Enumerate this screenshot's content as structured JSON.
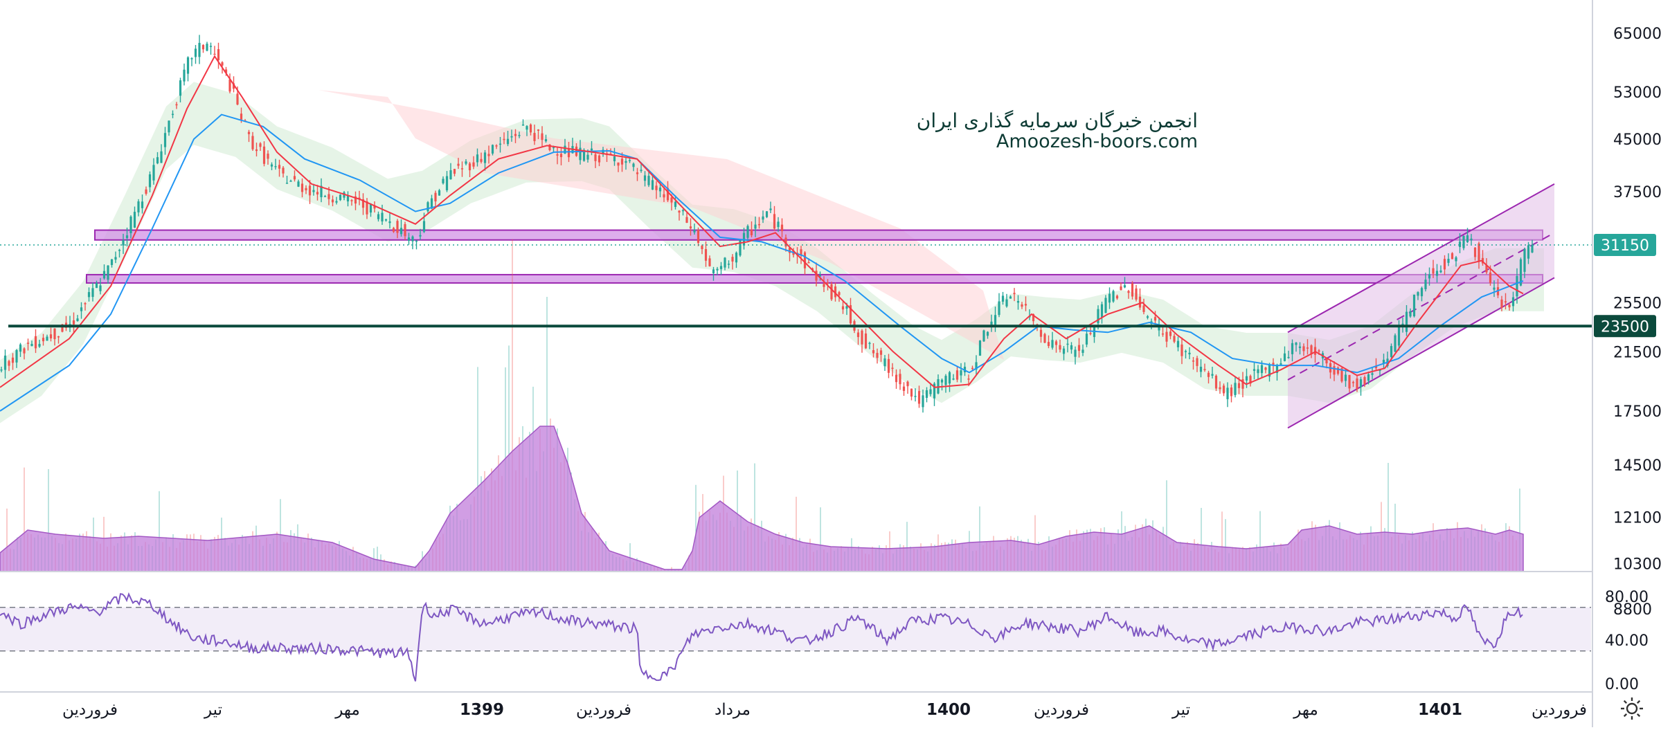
{
  "watermark": {
    "line1": "انجمن خبرگان سرمایه گذاری ایران",
    "line2": "Amoozesh-boors.com"
  },
  "settings_icon": "gear-icon",
  "colors": {
    "price_line": "#26a69a",
    "support_line": "#0b4a3c",
    "zone_fill": "#d291e6",
    "zone_stroke": "#9c27b0",
    "channel": "#9c27b0",
    "ma_fast": "#f23645",
    "ma_slow": "#2196f3",
    "cloud_green": "#c8e6c9",
    "cloud_red": "#ffcdd2",
    "volume_area": "#c27ddb",
    "rsi_line": "#7e57c2",
    "rsi_band": "#ede7f6"
  },
  "chart_data": [
    {
      "type": "candlestick",
      "panel": "price",
      "y_scale": "log",
      "y_ticks": [
        65000,
        53000,
        45000,
        37500,
        31150,
        25500,
        23500,
        21500,
        17500,
        14500,
        12100,
        10300,
        8800
      ],
      "price_ticks": [
        65000,
        53000,
        45000,
        37500,
        25500,
        21500,
        17500,
        14500,
        12100,
        10300,
        8800
      ],
      "last_price": 31150,
      "support_level": 23500,
      "resistance_zones": [
        [
          31700,
          32800
        ],
        [
          27300,
          28100
        ]
      ],
      "x_labels": [
        "فروردین",
        "تیر",
        "مهر",
        "1399",
        "فروردین",
        "مرداد",
        "1400",
        "فروردین",
        "تیر",
        "مهر",
        "1401",
        "فروردین"
      ],
      "x_labels_bold": [
        false,
        false,
        false,
        true,
        false,
        false,
        true,
        false,
        false,
        false,
        true,
        false
      ],
      "close_path": [
        [
          0,
          20500
        ],
        [
          40,
          22000
        ],
        [
          100,
          23500
        ],
        [
          160,
          29000
        ],
        [
          220,
          40000
        ],
        [
          250,
          50000
        ],
        [
          275,
          60000
        ],
        [
          300,
          63000
        ],
        [
          330,
          55000
        ],
        [
          360,
          45000
        ],
        [
          400,
          40000
        ],
        [
          440,
          38000
        ],
        [
          480,
          37000
        ],
        [
          520,
          36000
        ],
        [
          560,
          34000
        ],
        [
          600,
          31500
        ],
        [
          620,
          36000
        ],
        [
          650,
          40000
        ],
        [
          690,
          42000
        ],
        [
          720,
          44000
        ],
        [
          760,
          47000
        ],
        [
          790,
          44000
        ],
        [
          820,
          43000
        ],
        [
          860,
          42500
        ],
        [
          900,
          42000
        ],
        [
          920,
          40000
        ],
        [
          960,
          37000
        ],
        [
          1000,
          33000
        ],
        [
          1030,
          28000
        ],
        [
          1060,
          30000
        ],
        [
          1080,
          32500
        ],
        [
          1110,
          35000
        ],
        [
          1140,
          31000
        ],
        [
          1180,
          28000
        ],
        [
          1220,
          25000
        ],
        [
          1250,
          22000
        ],
        [
          1290,
          20000
        ],
        [
          1330,
          18000
        ],
        [
          1360,
          19500
        ],
        [
          1400,
          20000
        ],
        [
          1430,
          24000
        ],
        [
          1460,
          26500
        ],
        [
          1490,
          24000
        ],
        [
          1520,
          22000
        ],
        [
          1560,
          21500
        ],
        [
          1600,
          26000
        ],
        [
          1630,
          27000
        ],
        [
          1660,
          24000
        ],
        [
          1700,
          22000
        ],
        [
          1740,
          20000
        ],
        [
          1770,
          18500
        ],
        [
          1800,
          19500
        ],
        [
          1840,
          20500
        ],
        [
          1870,
          22000
        ],
        [
          1900,
          21500
        ],
        [
          1930,
          20000
        ],
        [
          1960,
          19000
        ],
        [
          2000,
          21000
        ],
        [
          2030,
          24000
        ],
        [
          2060,
          28000
        ],
        [
          2100,
          30000
        ],
        [
          2120,
          32500
        ],
        [
          2140,
          29000
        ],
        [
          2160,
          26000
        ],
        [
          2180,
          25000
        ],
        [
          2200,
          30000
        ],
        [
          2215,
          31500
        ]
      ],
      "ma_fast_path": [
        [
          0,
          19000
        ],
        [
          100,
          22500
        ],
        [
          160,
          27000
        ],
        [
          220,
          37000
        ],
        [
          270,
          50000
        ],
        [
          310,
          60000
        ],
        [
          350,
          52000
        ],
        [
          400,
          43000
        ],
        [
          450,
          38500
        ],
        [
          520,
          36500
        ],
        [
          600,
          33500
        ],
        [
          650,
          37000
        ],
        [
          720,
          42000
        ],
        [
          790,
          44000
        ],
        [
          870,
          42800
        ],
        [
          920,
          42000
        ],
        [
          980,
          36000
        ],
        [
          1040,
          31000
        ],
        [
          1080,
          31500
        ],
        [
          1120,
          32500
        ],
        [
          1160,
          29500
        ],
        [
          1220,
          25500
        ],
        [
          1290,
          21500
        ],
        [
          1350,
          19000
        ],
        [
          1400,
          19200
        ],
        [
          1450,
          22500
        ],
        [
          1490,
          24500
        ],
        [
          1540,
          22500
        ],
        [
          1600,
          24500
        ],
        [
          1650,
          25500
        ],
        [
          1700,
          22800
        ],
        [
          1760,
          20500
        ],
        [
          1800,
          19200
        ],
        [
          1850,
          20200
        ],
        [
          1900,
          21500
        ],
        [
          1960,
          19800
        ],
        [
          2000,
          20300
        ],
        [
          2050,
          24000
        ],
        [
          2110,
          29000
        ],
        [
          2140,
          29500
        ],
        [
          2180,
          27000
        ],
        [
          2200,
          26300
        ]
      ],
      "ma_slow_path": [
        [
          0,
          17500
        ],
        [
          100,
          20500
        ],
        [
          160,
          24500
        ],
        [
          220,
          33000
        ],
        [
          280,
          45000
        ],
        [
          320,
          49000
        ],
        [
          380,
          47000
        ],
        [
          440,
          42000
        ],
        [
          520,
          39000
        ],
        [
          600,
          35000
        ],
        [
          650,
          36000
        ],
        [
          720,
          40000
        ],
        [
          800,
          43000
        ],
        [
          880,
          43200
        ],
        [
          920,
          42000
        ],
        [
          980,
          36500
        ],
        [
          1040,
          32000
        ],
        [
          1100,
          31500
        ],
        [
          1160,
          30000
        ],
        [
          1220,
          27500
        ],
        [
          1300,
          23500
        ],
        [
          1360,
          21000
        ],
        [
          1400,
          20000
        ],
        [
          1450,
          21500
        ],
        [
          1500,
          23500
        ],
        [
          1550,
          23200
        ],
        [
          1600,
          23000
        ],
        [
          1660,
          23800
        ],
        [
          1720,
          23000
        ],
        [
          1780,
          21000
        ],
        [
          1840,
          20500
        ],
        [
          1900,
          20500
        ],
        [
          1960,
          20000
        ],
        [
          2020,
          21000
        ],
        [
          2080,
          23500
        ],
        [
          2140,
          26000
        ],
        [
          2200,
          27500
        ]
      ],
      "channel": {
        "lower": [
          [
            1860,
            16500
          ],
          [
            2245,
            27800
          ]
        ],
        "upper": [
          [
            1860,
            23000
          ],
          [
            2245,
            38500
          ]
        ],
        "mid": [
          [
            1860,
            19500
          ],
          [
            2245,
            32500
          ]
        ]
      }
    },
    {
      "type": "area",
      "panel": "volume",
      "x": [
        0,
        40,
        80,
        150,
        200,
        300,
        400,
        480,
        540,
        600,
        620,
        650,
        700,
        740,
        780,
        800,
        820,
        840,
        880,
        960,
        985,
        1000,
        1010,
        1040,
        1080,
        1120,
        1160,
        1200,
        1280,
        1350,
        1400,
        1460,
        1500,
        1540,
        1580,
        1620,
        1660,
        1700,
        1760,
        1800,
        1860,
        1880,
        1920,
        1960,
        2000,
        2040,
        2080,
        2120,
        2160,
        2180,
        2200
      ],
      "y": [
        0.09,
        0.2,
        0.18,
        0.16,
        0.17,
        0.15,
        0.18,
        0.14,
        0.06,
        0.02,
        0.1,
        0.28,
        0.44,
        0.58,
        0.7,
        0.7,
        0.52,
        0.28,
        0.1,
        0.01,
        0.01,
        0.1,
        0.26,
        0.34,
        0.24,
        0.18,
        0.14,
        0.12,
        0.11,
        0.12,
        0.14,
        0.15,
        0.13,
        0.17,
        0.19,
        0.18,
        0.22,
        0.14,
        0.12,
        0.11,
        0.13,
        0.2,
        0.22,
        0.18,
        0.19,
        0.18,
        0.2,
        0.21,
        0.18,
        0.2,
        0.18
      ]
    },
    {
      "type": "line",
      "panel": "rsi",
      "y_ticks": [
        80.0,
        40.0,
        0.0
      ],
      "band": [
        70,
        30
      ],
      "x": [
        0,
        30,
        60,
        100,
        140,
        180,
        220,
        250,
        280,
        300,
        330,
        360,
        400,
        440,
        480,
        520,
        560,
        590,
        600,
        610,
        630,
        650,
        680,
        700,
        740,
        780,
        820,
        860,
        900,
        920,
        925,
        960,
        970,
        1000,
        1040,
        1080,
        1120,
        1160,
        1200,
        1240,
        1280,
        1320,
        1360,
        1400,
        1440,
        1480,
        1520,
        1560,
        1600,
        1640,
        1680,
        1720,
        1760,
        1800,
        1840,
        1880,
        1920,
        1960,
        2000,
        2040,
        2080,
        2100,
        2120,
        2140,
        2160,
        2180,
        2200
      ],
      "y": [
        65,
        55,
        62,
        70,
        66,
        80,
        72,
        55,
        42,
        40,
        38,
        33,
        33,
        32,
        32,
        30,
        28,
        28,
        3,
        72,
        62,
        68,
        60,
        55,
        62,
        65,
        58,
        55,
        52,
        50,
        8,
        8,
        12,
        45,
        52,
        55,
        48,
        38,
        48,
        60,
        40,
        58,
        60,
        54,
        42,
        56,
        52,
        48,
        62,
        46,
        48,
        38,
        36,
        44,
        50,
        52,
        48,
        56,
        58,
        62,
        66,
        60,
        70,
        38,
        37,
        68,
        65
      ]
    }
  ]
}
